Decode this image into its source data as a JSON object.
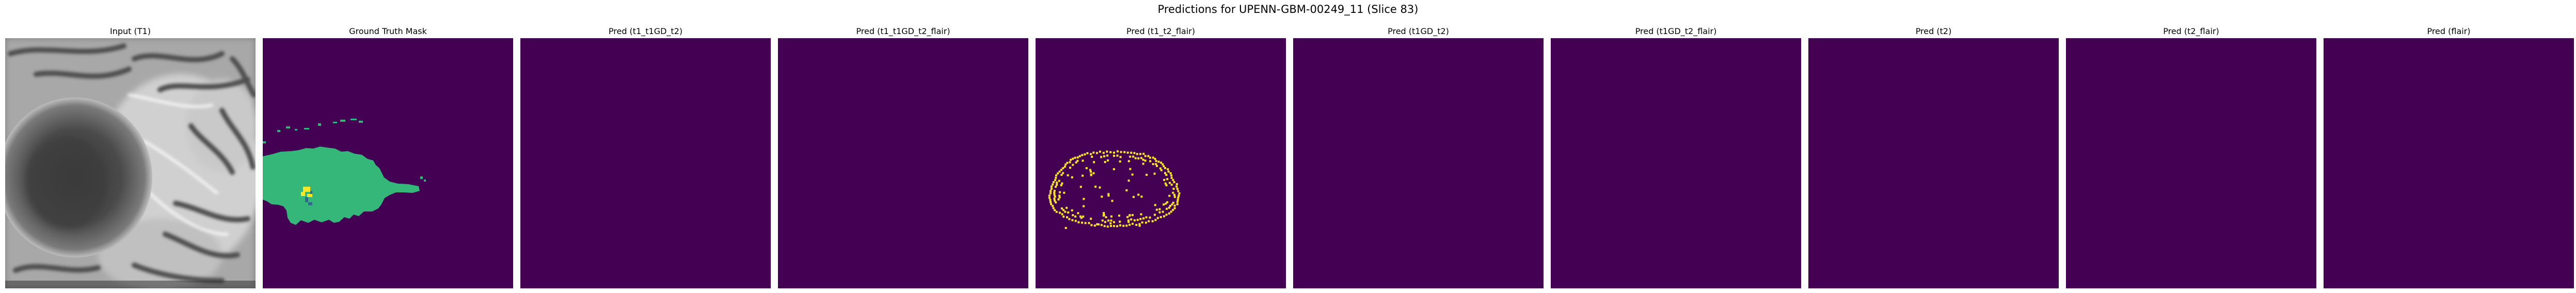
{
  "figure": {
    "suptitle": "Predictions for UPENN-GBM-00249_11 (Slice 83)",
    "colormap": {
      "background": "#440154",
      "label_1": "#35b779",
      "label_2": "#fde725",
      "label_3": "#31688e"
    },
    "panels": [
      {
        "title": "Input (T1)",
        "type": "mri_t1",
        "colormap": "gray"
      },
      {
        "title": "Ground Truth Mask",
        "type": "mask",
        "content": "ground-truth"
      },
      {
        "title": "Pred (t1_t1GD_t2)",
        "type": "mask",
        "content": "empty"
      },
      {
        "title": "Pred (t1_t1GD_t2_flair)",
        "type": "mask",
        "content": "empty"
      },
      {
        "title": "Pred (t1_t2_flair)",
        "type": "mask",
        "content": "ring"
      },
      {
        "title": "Pred (t1GD_t2)",
        "type": "mask",
        "content": "empty"
      },
      {
        "title": "Pred (t1GD_t2_flair)",
        "type": "mask",
        "content": "empty"
      },
      {
        "title": "Pred (t2)",
        "type": "mask",
        "content": "empty"
      },
      {
        "title": "Pred (t2_flair)",
        "type": "mask",
        "content": "empty"
      },
      {
        "title": "Pred (flair)",
        "type": "mask",
        "content": "empty"
      }
    ]
  }
}
